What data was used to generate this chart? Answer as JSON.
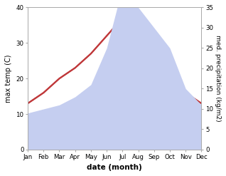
{
  "months": [
    "Jan",
    "Feb",
    "Mar",
    "Apr",
    "May",
    "Jun",
    "Jul",
    "Aug",
    "Sep",
    "Oct",
    "Nov",
    "Dec"
  ],
  "temperature": [
    13,
    16,
    20,
    23,
    27,
    32,
    37,
    37,
    31,
    24,
    16,
    13
  ],
  "precipitation": [
    9,
    10,
    11,
    13,
    16,
    25,
    40,
    35,
    30,
    25,
    15,
    11
  ],
  "temp_color": "#c0393b",
  "precip_fill_color": "#c5cef0",
  "xlabel": "date (month)",
  "ylabel_left": "max temp (C)",
  "ylabel_right": "med. precipitation (kg/m2)",
  "ylim_left": [
    0,
    40
  ],
  "ylim_right": [
    0,
    35
  ],
  "yticks_left": [
    0,
    10,
    20,
    30,
    40
  ],
  "yticks_right": [
    0,
    5,
    10,
    15,
    20,
    25,
    30,
    35
  ],
  "grid_color": "#cccccc"
}
